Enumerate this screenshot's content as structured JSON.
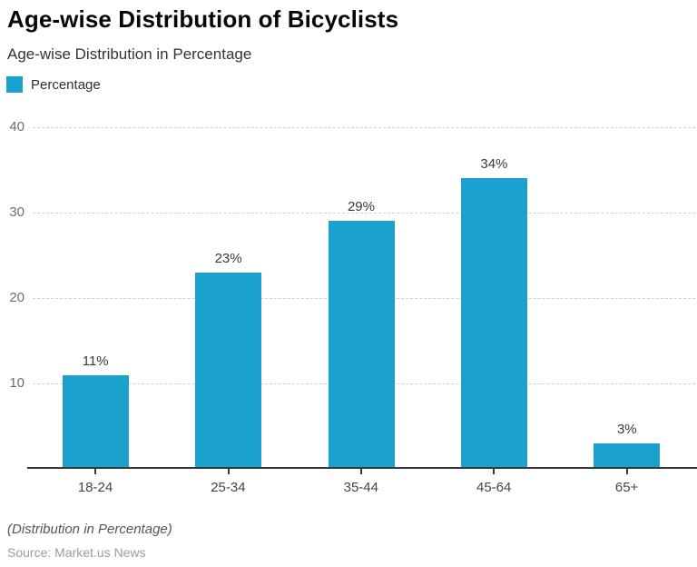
{
  "header": {
    "title": "Age-wise Distribution of Bicyclists",
    "subtitle": "Age-wise Distribution in Percentage"
  },
  "legend": {
    "items": [
      {
        "label": "Percentage",
        "color": "#1BA1CD"
      }
    ]
  },
  "chart_data": {
    "type": "bar",
    "title": "Age-wise Distribution of Bicyclists",
    "subtitle": "Age-wise Distribution in Percentage",
    "categories": [
      "18-24",
      "25-34",
      "35-44",
      "45-64",
      "65+"
    ],
    "series": [
      {
        "name": "Percentage",
        "values": [
          11,
          23,
          29,
          34,
          3
        ]
      }
    ],
    "value_labels": [
      "11%",
      "23%",
      "29%",
      "34%",
      "3%"
    ],
    "xlabel": "",
    "ylabel": "",
    "ylim": [
      0,
      40
    ],
    "yticks": [
      10,
      20,
      30,
      40
    ],
    "grid": "horizontal-dashed",
    "legend_position": "top-left",
    "bar_color": "#1BA1CD",
    "axis_color": "#3a3a3e",
    "gridline_color": "#d2d2d2"
  },
  "footer": {
    "note": "(Distribution in Percentage)",
    "source": "Source: Market.us News"
  }
}
